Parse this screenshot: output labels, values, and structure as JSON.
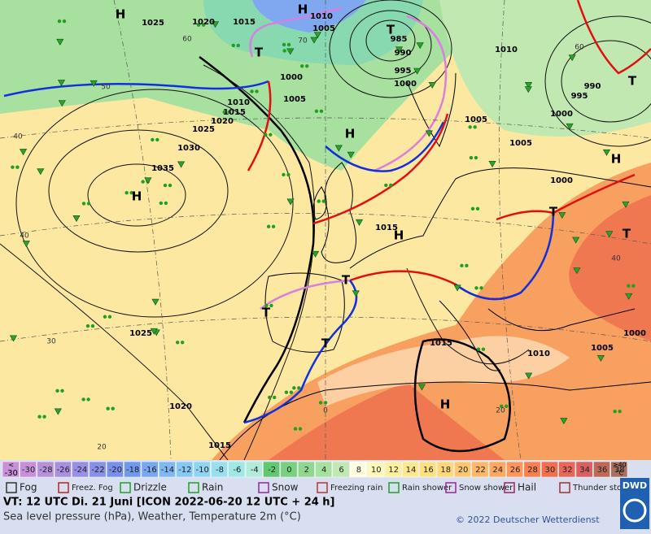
{
  "map": {
    "pressure_labels": [
      "1025",
      "1020",
      "1015",
      "1010",
      "1005",
      "985",
      "990",
      "995",
      "1000",
      "1000",
      "1005",
      "1010",
      "1015",
      "1020",
      "1025",
      "1030",
      "1035",
      "1010",
      "1005",
      "1005",
      "1000",
      "1000",
      "995",
      "990",
      "1015",
      "1025",
      "1020",
      "1015",
      "1015",
      "1010",
      "1005",
      "1000"
    ],
    "temperature_labels": [
      "50",
      "40",
      "40",
      "30",
      "20",
      "20",
      "0",
      "60",
      "70",
      "60",
      "40"
    ],
    "centers": [
      "H",
      "H",
      "H",
      "H",
      "H",
      "H",
      "H",
      "T",
      "T",
      "T",
      "T",
      "T",
      "T",
      "T",
      "T"
    ]
  },
  "scale": {
    "low_label": [
      "<",
      "-30"
    ],
    "values": [
      -30,
      -28,
      -26,
      -24,
      -22,
      -20,
      -18,
      -16,
      -14,
      -12,
      -10,
      -8,
      -6,
      -4,
      -2,
      0,
      2,
      4,
      6,
      8,
      10,
      12,
      14,
      16,
      18,
      20,
      22,
      24,
      26,
      28,
      30,
      32,
      34,
      36,
      38
    ],
    "high_label": [
      "≥40",
      "°C"
    ],
    "colors": [
      "#c890d8",
      "#c890d8",
      "#b890dc",
      "#a890e0",
      "#9890e4",
      "#8890e8",
      "#7890ec",
      "#7098ec",
      "#78a8f0",
      "#80b8f4",
      "#88c8f4",
      "#90d4f4",
      "#98e0f0",
      "#a0e8e8",
      "#b0ecd8",
      "#60c870",
      "#78d080",
      "#90d890",
      "#a8e0a0",
      "#c0e8b0",
      "#ffffe0",
      "#fff8b8",
      "#fff0a0",
      "#ffe890",
      "#ffe080",
      "#ffd878",
      "#ffc870",
      "#ffb868",
      "#ffa860",
      "#ff9858",
      "#f88050",
      "#f07050",
      "#e86858",
      "#d86060",
      "#c06858",
      "#a87060"
    ]
  },
  "legend": [
    "Fog",
    "Freez. Fog",
    "Drizzle",
    "Rain",
    "Snow",
    "Freezing rain",
    "Rain shower",
    "Snow shower",
    "Hail",
    "Thunder storm"
  ],
  "footer": {
    "valid_time": "VT: 12 UTC Di.  21 Juni [ICON 2022-06-20  12 UTC + 24 h]",
    "description": "Sea level pressure (hPa), Weather, Temperature 2m (°C)",
    "copyright": "© 2022 Deutscher Wetterdienst",
    "logo": "DWD"
  }
}
